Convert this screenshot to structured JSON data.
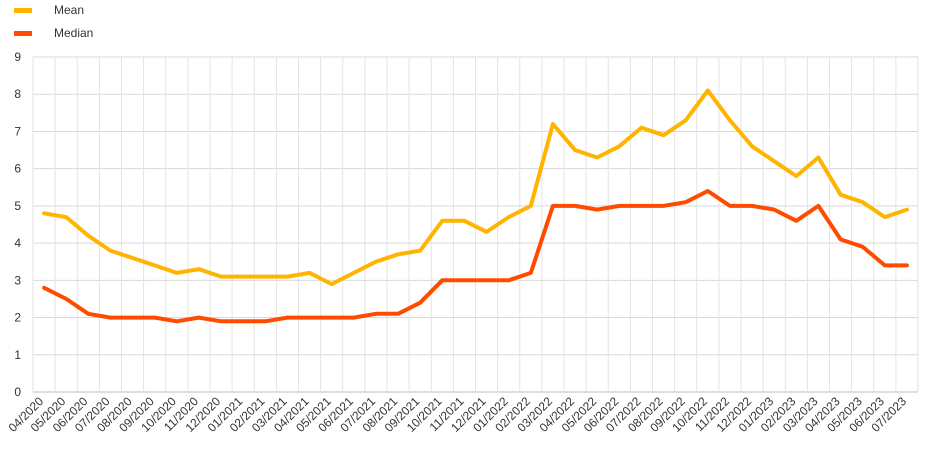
{
  "chart_data": {
    "type": "line",
    "categories": [
      "04/2020",
      "05/2020",
      "06/2020",
      "07/2020",
      "08/2020",
      "09/2020",
      "10/2020",
      "11/2020",
      "12/2020",
      "01/2021",
      "02/2021",
      "03/2021",
      "04/2021",
      "05/2021",
      "06/2021",
      "07/2021",
      "08/2021",
      "09/2021",
      "10/2021",
      "11/2021",
      "12/2021",
      "01/2022",
      "02/2022",
      "03/2022",
      "04/2022",
      "05/2022",
      "06/2022",
      "07/2022",
      "08/2022",
      "09/2022",
      "10/2022",
      "11/2022",
      "12/2022",
      "01/2023",
      "02/2023",
      "03/2023",
      "04/2023",
      "05/2023",
      "06/2023",
      "07/2023"
    ],
    "series": [
      {
        "name": "Mean",
        "color": "#FFB400",
        "values": [
          4.8,
          4.7,
          4.2,
          3.8,
          3.6,
          3.4,
          3.2,
          3.3,
          3.1,
          3.1,
          3.1,
          3.1,
          3.2,
          2.9,
          3.2,
          3.5,
          3.7,
          3.8,
          4.6,
          4.6,
          4.3,
          4.7,
          5.0,
          7.2,
          6.5,
          6.3,
          6.6,
          7.1,
          6.9,
          7.3,
          8.1,
          7.3,
          6.6,
          6.2,
          5.8,
          6.3,
          5.3,
          5.1,
          4.7,
          4.9
        ]
      },
      {
        "name": "Median",
        "color": "#FF4B00",
        "values": [
          2.8,
          2.5,
          2.1,
          2.0,
          2.0,
          2.0,
          1.9,
          2.0,
          1.9,
          1.9,
          1.9,
          2.0,
          2.0,
          2.0,
          2.0,
          2.1,
          2.1,
          2.4,
          3.0,
          3.0,
          3.0,
          3.0,
          3.2,
          5.0,
          5.0,
          4.9,
          5.0,
          5.0,
          5.0,
          5.1,
          5.4,
          5.0,
          5.0,
          4.9,
          4.6,
          5.0,
          4.1,
          3.9,
          3.4,
          3.4
        ]
      }
    ],
    "ylim": [
      0,
      9
    ],
    "yticks": [
      "0",
      "1",
      "2",
      "3",
      "4",
      "5",
      "6",
      "7",
      "8",
      "9"
    ],
    "grid": true,
    "legend_position": "top-left",
    "title": "",
    "xlabel": "",
    "ylabel": ""
  }
}
